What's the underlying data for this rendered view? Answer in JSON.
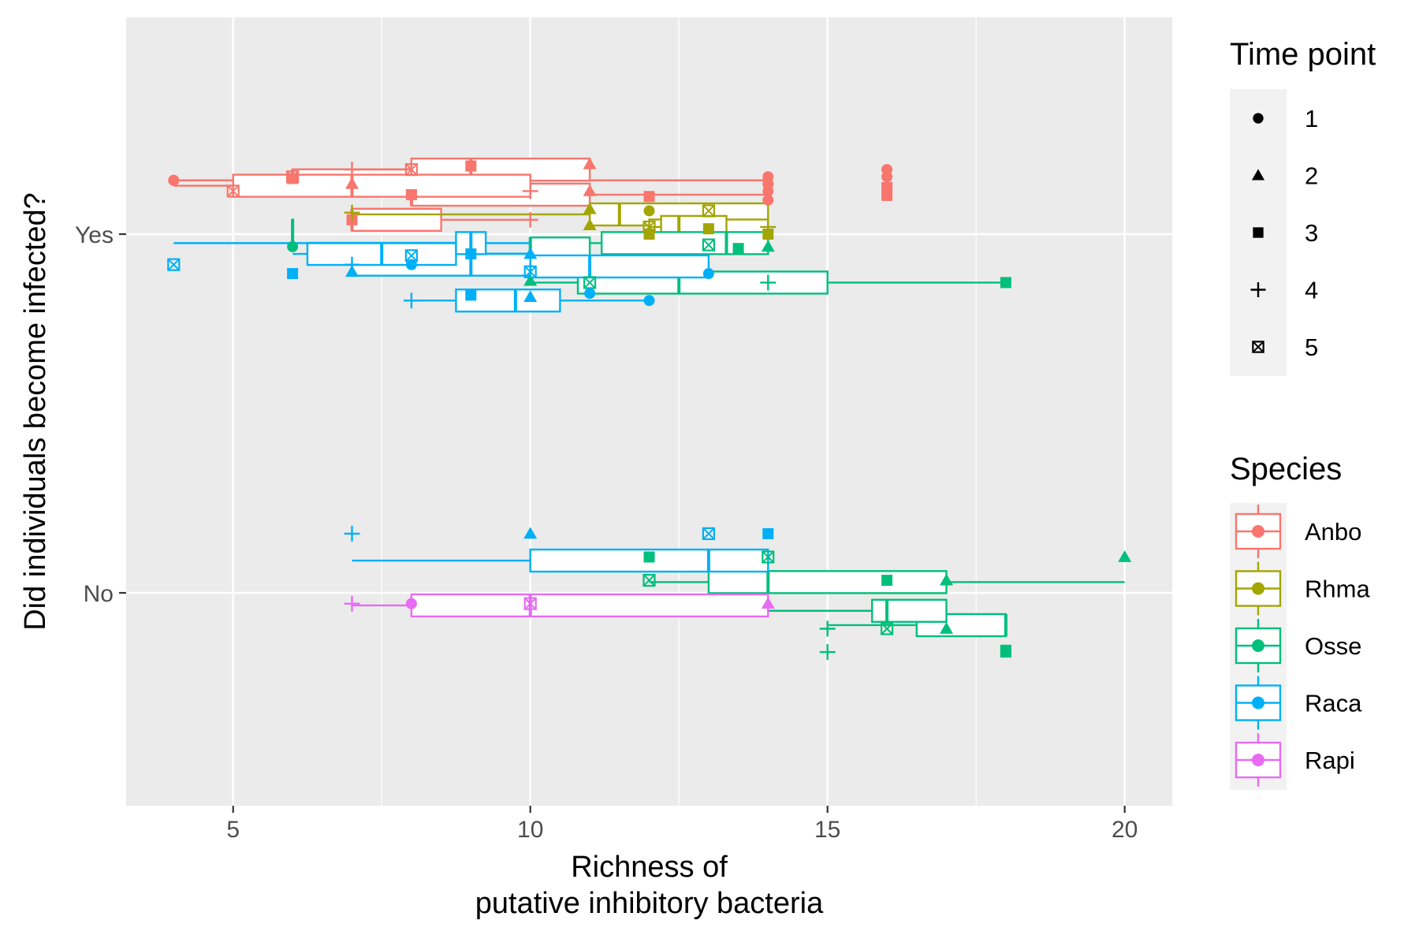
{
  "chart_data": {
    "type": "boxplot",
    "orientation": "horizontal",
    "xlabel_lines": [
      "Richness of",
      "putative inhibitory bacteria"
    ],
    "ylabel": "Did individuals become infected?",
    "x_ticks": [
      5,
      10,
      15,
      20
    ],
    "xlim": [
      3.2,
      20.8
    ],
    "y_categories": [
      "No",
      "Yes"
    ],
    "grid": true,
    "legend_placement": "right",
    "species_legend": {
      "title": "Species",
      "items": [
        {
          "name": "Anbo",
          "color": "#F8766D"
        },
        {
          "name": "Rhma",
          "color": "#A3A500"
        },
        {
          "name": "Osse",
          "color": "#00BF7D"
        },
        {
          "name": "Raca",
          "color": "#00B0F6"
        },
        {
          "name": "Rapi",
          "color": "#E76BF3"
        }
      ]
    },
    "time_legend": {
      "title": "Time point",
      "items": [
        {
          "label": "1",
          "shape": "circle"
        },
        {
          "label": "2",
          "shape": "triangle"
        },
        {
          "label": "3",
          "shape": "square"
        },
        {
          "label": "4",
          "shape": "plus"
        },
        {
          "label": "5",
          "shape": "boxcross"
        }
      ]
    },
    "boxes": [
      {
        "category": "Yes",
        "species": "Anbo",
        "time": 1,
        "offset": 0.15,
        "min": 4,
        "q1": 6,
        "median": 6,
        "q3": 8.75,
        "max": 14,
        "points": [
          {
            "x": 4,
            "dy": 0
          },
          {
            "x": 14,
            "dy": -0.01
          },
          {
            "x": 14,
            "dy": 0.01
          }
        ]
      },
      {
        "category": "Yes",
        "species": "Anbo",
        "time": 2,
        "offset": 0.18,
        "min": 7,
        "q1": 8,
        "median": 9,
        "q3": 11,
        "max": 11,
        "points": []
      },
      {
        "category": "Yes",
        "species": "Anbo",
        "time": 3,
        "offset": 0.11,
        "min": 7,
        "q1": 8,
        "median": 8,
        "q3": 11,
        "max": 14,
        "points": [
          {
            "x": 16,
            "dy": 0.02
          },
          {
            "x": 16,
            "dy": -0.002
          }
        ]
      },
      {
        "category": "Yes",
        "species": "Anbo",
        "time": 4,
        "offset": 0.135,
        "min": 4,
        "q1": 5,
        "median": 7,
        "q3": 10,
        "max": 10,
        "points": []
      },
      {
        "category": "Yes",
        "species": "Anbo",
        "time": 5,
        "offset": 0.04,
        "min": 7,
        "q1": 7,
        "median": 7,
        "q3": 8.5,
        "max": 10,
        "points": []
      },
      {
        "category": "Yes",
        "species": "Rhma",
        "time": 2,
        "offset": 0.055,
        "min": 7,
        "q1": 11,
        "median": 11.5,
        "q3": 14,
        "max": 14,
        "points": []
      },
      {
        "category": "Yes",
        "species": "Rhma",
        "time": 3,
        "offset": 0.01,
        "min": 12,
        "q1": 12,
        "median": 13,
        "q3": 14,
        "max": 14,
        "points": []
      },
      {
        "category": "Yes",
        "species": "Rhma",
        "time": 5,
        "offset": 0.02,
        "min": 12,
        "q1": 12.2,
        "median": 12.5,
        "q3": 13.3,
        "max": 13.3,
        "points": []
      },
      {
        "category": "Yes",
        "species": "Osse",
        "time": 1,
        "offset": -0.04,
        "min": 10,
        "q1": 10,
        "median": 10,
        "q3": 11,
        "max": 11,
        "points": []
      },
      {
        "category": "Yes",
        "species": "Osse",
        "time": 2,
        "offset": -0.025,
        "min": 11,
        "q1": 11.2,
        "median": 13.3,
        "q3": 14,
        "max": 14,
        "points": []
      },
      {
        "category": "Yes",
        "species": "Osse",
        "time": 3,
        "offset": -0.135,
        "min": 10,
        "q1": 10.8,
        "median": 12.5,
        "q3": 15,
        "max": 18,
        "points": []
      },
      {
        "category": "Yes",
        "species": "Osse",
        "time": 4,
        "offset": 0.01,
        "min": 6,
        "q1": 6,
        "median": 6,
        "q3": 6,
        "max": 6,
        "points": []
      },
      {
        "category": "Yes",
        "species": "Raca",
        "time": 1,
        "offset": -0.09,
        "min": 10,
        "q1": 10,
        "median": 11,
        "q3": 13,
        "max": 13,
        "points": []
      },
      {
        "category": "Yes",
        "species": "Raca",
        "time": 2,
        "offset": -0.085,
        "min": 7,
        "q1": 7,
        "median": 9,
        "q3": 10,
        "max": 10,
        "points": []
      },
      {
        "category": "Yes",
        "species": "Raca",
        "time": 3,
        "offset": -0.185,
        "min": 8,
        "q1": 8.75,
        "median": 9.75,
        "q3": 10.5,
        "max": 12,
        "points": []
      },
      {
        "category": "Yes",
        "species": "Raca",
        "time": 4,
        "offset": -0.055,
        "min": 6,
        "q1": 6.25,
        "median": 7.5,
        "q3": 8.75,
        "max": 10,
        "points": []
      },
      {
        "category": "Yes",
        "species": "Raca",
        "time": 5,
        "offset": -0.025,
        "min": 4,
        "q1": 8.75,
        "median": 9,
        "q3": 9.25,
        "max": 10,
        "points": []
      },
      {
        "category": "No",
        "species": "Osse",
        "time": 1,
        "offset": 0.03,
        "min": 14,
        "q1": 14,
        "median": 14,
        "q3": 14,
        "max": 14,
        "points": []
      },
      {
        "category": "No",
        "species": "Osse",
        "time": 2,
        "offset": 0.03,
        "min": 12,
        "q1": 13,
        "median": 14,
        "q3": 17,
        "max": 20,
        "points": []
      },
      {
        "category": "No",
        "species": "Osse",
        "time": 3,
        "offset": -0.09,
        "min": 15,
        "q1": 16.5,
        "median": 18,
        "q3": 18,
        "max": 18,
        "points": []
      },
      {
        "category": "No",
        "species": "Osse",
        "time": 4,
        "offset": -0.05,
        "min": 14,
        "q1": 15.75,
        "median": 16,
        "q3": 17,
        "max": 17,
        "points": []
      },
      {
        "category": "No",
        "species": "Raca",
        "time": 2,
        "offset": 0.09,
        "min": 7,
        "q1": 10,
        "median": 13,
        "q3": 14,
        "max": 14,
        "points": []
      },
      {
        "category": "No",
        "species": "Rapi",
        "time": 2,
        "offset": -0.035,
        "min": 7,
        "q1": 8,
        "median": 10,
        "q3": 14,
        "max": 14,
        "points": []
      }
    ],
    "raw_points": [
      {
        "category": "Yes",
        "species": "Anbo",
        "time": 1,
        "x": 4,
        "dy": 0.15
      },
      {
        "category": "Yes",
        "species": "Anbo",
        "time": 5,
        "x": 6,
        "dy": 0.16
      },
      {
        "category": "Yes",
        "species": "Anbo",
        "time": 3,
        "x": 6,
        "dy": 0.155
      },
      {
        "category": "Yes",
        "species": "Anbo",
        "time": 2,
        "x": 7,
        "dy": 0.14
      },
      {
        "category": "Yes",
        "species": "Anbo",
        "time": 4,
        "x": 7,
        "dy": 0.18
      },
      {
        "category": "Yes",
        "species": "Anbo",
        "time": 5,
        "x": 8,
        "dy": 0.18
      },
      {
        "category": "Yes",
        "species": "Anbo",
        "time": 3,
        "x": 9,
        "dy": 0.19
      },
      {
        "category": "Yes",
        "species": "Anbo",
        "time": 2,
        "x": 11,
        "dy": 0.195
      },
      {
        "category": "Yes",
        "species": "Anbo",
        "time": 5,
        "x": 5,
        "dy": 0.12
      },
      {
        "category": "Yes",
        "species": "Anbo",
        "time": 4,
        "x": 10,
        "dy": 0.12
      },
      {
        "category": "Yes",
        "species": "Anbo",
        "time": 2,
        "x": 11,
        "dy": 0.12
      },
      {
        "category": "Yes",
        "species": "Anbo",
        "time": 3,
        "x": 8,
        "dy": 0.11
      },
      {
        "category": "Yes",
        "species": "Anbo",
        "time": 3,
        "x": 12,
        "dy": 0.105
      },
      {
        "category": "Yes",
        "species": "Anbo",
        "time": 1,
        "x": 14,
        "dy": 0.14
      },
      {
        "category": "Yes",
        "species": "Anbo",
        "time": 1,
        "x": 14,
        "dy": 0.12
      },
      {
        "category": "Yes",
        "species": "Anbo",
        "time": 1,
        "x": 14,
        "dy": 0.095
      },
      {
        "category": "Yes",
        "species": "Anbo",
        "time": 3,
        "x": 7,
        "dy": 0.04
      },
      {
        "category": "Yes",
        "species": "Anbo",
        "time": 4,
        "x": 10,
        "dy": 0.04
      },
      {
        "category": "Yes",
        "species": "Anbo",
        "time": 1,
        "x": 16,
        "dy": 0.18
      },
      {
        "category": "Yes",
        "species": "Anbo",
        "time": 1,
        "x": 16,
        "dy": 0.16
      },
      {
        "category": "Yes",
        "species": "Rhma",
        "time": 4,
        "x": 7,
        "dy": 0.06
      },
      {
        "category": "Yes",
        "species": "Rhma",
        "time": 2,
        "x": 11,
        "dy": 0.07
      },
      {
        "category": "Yes",
        "species": "Rhma",
        "time": 2,
        "x": 11,
        "dy": 0.025
      },
      {
        "category": "Yes",
        "species": "Rhma",
        "time": 1,
        "x": 12,
        "dy": 0.065
      },
      {
        "category": "Yes",
        "species": "Rhma",
        "time": 5,
        "x": 13,
        "dy": 0.065
      },
      {
        "category": "Yes",
        "species": "Rhma",
        "time": 5,
        "x": 12,
        "dy": 0.02
      },
      {
        "category": "Yes",
        "species": "Rhma",
        "time": 3,
        "x": 12,
        "dy": 0.0
      },
      {
        "category": "Yes",
        "species": "Rhma",
        "time": 3,
        "x": 13,
        "dy": 0.015
      },
      {
        "category": "Yes",
        "species": "Rhma",
        "time": 3,
        "x": 14,
        "dy": 0.0
      },
      {
        "category": "Yes",
        "species": "Rhma",
        "time": 4,
        "x": 14,
        "dy": 0.02
      },
      {
        "category": "Yes",
        "species": "Osse",
        "time": 1,
        "x": 6,
        "dy": -0.035
      },
      {
        "category": "Yes",
        "species": "Osse",
        "time": 5,
        "x": 13,
        "dy": -0.03
      },
      {
        "category": "Yes",
        "species": "Osse",
        "time": 2,
        "x": 14,
        "dy": -0.035
      },
      {
        "category": "Yes",
        "species": "Osse",
        "time": 3,
        "x": 13.5,
        "dy": -0.04
      },
      {
        "category": "Yes",
        "species": "Osse",
        "time": 2,
        "x": 10,
        "dy": -0.13
      },
      {
        "category": "Yes",
        "species": "Osse",
        "time": 5,
        "x": 11,
        "dy": -0.135
      },
      {
        "category": "Yes",
        "species": "Osse",
        "time": 4,
        "x": 14,
        "dy": -0.135
      },
      {
        "category": "Yes",
        "species": "Osse",
        "time": 3,
        "x": 18,
        "dy": -0.135
      },
      {
        "category": "Yes",
        "species": "Raca",
        "time": 5,
        "x": 4,
        "dy": -0.085
      },
      {
        "category": "Yes",
        "species": "Raca",
        "time": 3,
        "x": 6,
        "dy": -0.11
      },
      {
        "category": "Yes",
        "species": "Raca",
        "time": 2,
        "x": 7,
        "dy": -0.105
      },
      {
        "category": "Yes",
        "species": "Raca",
        "time": 4,
        "x": 7,
        "dy": -0.085
      },
      {
        "category": "Yes",
        "species": "Raca",
        "time": 1,
        "x": 8,
        "dy": -0.085
      },
      {
        "category": "Yes",
        "species": "Raca",
        "time": 5,
        "x": 8,
        "dy": -0.06
      },
      {
        "category": "Yes",
        "species": "Raca",
        "time": 3,
        "x": 9,
        "dy": -0.055
      },
      {
        "category": "Yes",
        "species": "Raca",
        "time": 2,
        "x": 10,
        "dy": -0.055
      },
      {
        "category": "Yes",
        "species": "Raca",
        "time": 5,
        "x": 10,
        "dy": -0.105
      },
      {
        "category": "Yes",
        "species": "Raca",
        "time": 1,
        "x": 13,
        "dy": -0.11
      },
      {
        "category": "Yes",
        "species": "Raca",
        "time": 4,
        "x": 8,
        "dy": -0.185
      },
      {
        "category": "Yes",
        "species": "Raca",
        "time": 3,
        "x": 9,
        "dy": -0.17
      },
      {
        "category": "Yes",
        "species": "Raca",
        "time": 2,
        "x": 10,
        "dy": -0.175
      },
      {
        "category": "Yes",
        "species": "Raca",
        "time": 1,
        "x": 11,
        "dy": -0.165
      },
      {
        "category": "Yes",
        "species": "Raca",
        "time": 1,
        "x": 12,
        "dy": -0.185
      },
      {
        "category": "No",
        "species": "Raca",
        "time": 4,
        "x": 7,
        "dy": 0.165
      },
      {
        "category": "No",
        "species": "Raca",
        "time": 2,
        "x": 10,
        "dy": 0.165
      },
      {
        "category": "No",
        "species": "Raca",
        "time": 5,
        "x": 13,
        "dy": 0.165
      },
      {
        "category": "No",
        "species": "Raca",
        "time": 3,
        "x": 14,
        "dy": 0.165
      },
      {
        "category": "No",
        "species": "Osse",
        "time": 3,
        "x": 12,
        "dy": 0.1
      },
      {
        "category": "No",
        "species": "Osse",
        "time": 5,
        "x": 14,
        "dy": 0.1
      },
      {
        "category": "No",
        "species": "Osse",
        "time": 2,
        "x": 20,
        "dy": 0.1
      },
      {
        "category": "No",
        "species": "Osse",
        "time": 5,
        "x": 12,
        "dy": 0.035
      },
      {
        "category": "No",
        "species": "Osse",
        "time": 3,
        "x": 16,
        "dy": 0.035
      },
      {
        "category": "No",
        "species": "Osse",
        "time": 2,
        "x": 17,
        "dy": 0.035
      },
      {
        "category": "No",
        "species": "Rapi",
        "time": 4,
        "x": 7,
        "dy": -0.03
      },
      {
        "category": "No",
        "species": "Rapi",
        "time": 1,
        "x": 8,
        "dy": -0.03
      },
      {
        "category": "No",
        "species": "Rapi",
        "time": 5,
        "x": 10,
        "dy": -0.03
      },
      {
        "category": "No",
        "species": "Rapi",
        "time": 2,
        "x": 14,
        "dy": -0.03
      },
      {
        "category": "No",
        "species": "Osse",
        "time": 4,
        "x": 15,
        "dy": -0.1
      },
      {
        "category": "No",
        "species": "Osse",
        "time": 5,
        "x": 16,
        "dy": -0.1
      },
      {
        "category": "No",
        "species": "Osse",
        "time": 2,
        "x": 17,
        "dy": -0.1
      },
      {
        "category": "No",
        "species": "Osse",
        "time": 4,
        "x": 15,
        "dy": -0.165
      },
      {
        "category": "No",
        "species": "Osse",
        "time": 3,
        "x": 18,
        "dy": -0.165
      },
      {
        "category": "No",
        "species": "Osse",
        "time": 3,
        "x": 18,
        "dy": -0.16
      }
    ]
  }
}
